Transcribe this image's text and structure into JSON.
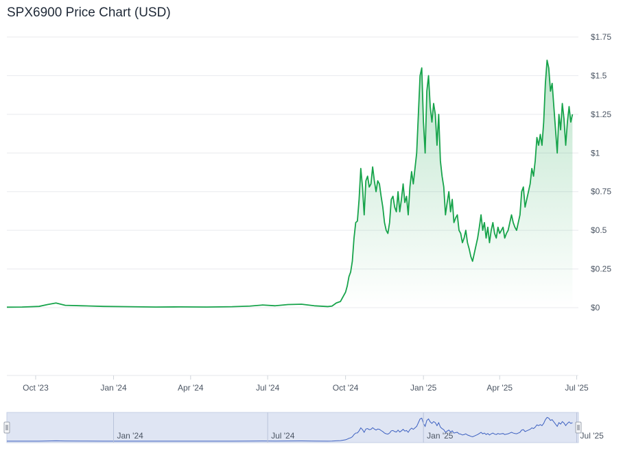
{
  "chart_data": {
    "type": "area",
    "title": "SPX6900 Price Chart (USD)",
    "y_ticks": [
      "$1.75",
      "$1.5",
      "$1.25",
      "$1",
      "$0.75",
      "$0.5",
      "$0.25",
      "$0"
    ],
    "y_tick_values": [
      1.75,
      1.5,
      1.25,
      1.0,
      0.75,
      0.5,
      0.25,
      0
    ],
    "x_ticks": [
      "Oct '23",
      "Jan '24",
      "Apr '24",
      "Jul '24",
      "Oct '24",
      "Jan '25",
      "Apr '25",
      "Jul '25"
    ],
    "x_tick_dates": [
      "2023-10-01",
      "2024-01-01",
      "2024-04-01",
      "2024-07-01",
      "2024-10-01",
      "2025-01-01",
      "2025-04-01",
      "2025-07-01"
    ],
    "navigator_ticks": [
      "Jan '24",
      "Jul '24",
      "Jan '25",
      "Jul '25"
    ],
    "navigator_tick_dates": [
      "2024-01-01",
      "2024-07-01",
      "2025-01-01",
      "2025-07-01"
    ],
    "ylim": [
      0,
      1.75
    ],
    "xlim": [
      "2023-08-28",
      "2025-07-03"
    ],
    "series": [
      {
        "color": "#16a34a",
        "points": [
          [
            "2023-08-28",
            0.003
          ],
          [
            "2023-09-15",
            0.004
          ],
          [
            "2023-10-05",
            0.008
          ],
          [
            "2023-10-15",
            0.02
          ],
          [
            "2023-10-25",
            0.03
          ],
          [
            "2023-11-05",
            0.015
          ],
          [
            "2023-11-25",
            0.012
          ],
          [
            "2023-12-20",
            0.008
          ],
          [
            "2024-01-20",
            0.006
          ],
          [
            "2024-02-20",
            0.004
          ],
          [
            "2024-03-20",
            0.005
          ],
          [
            "2024-04-20",
            0.004
          ],
          [
            "2024-05-20",
            0.006
          ],
          [
            "2024-06-10",
            0.01
          ],
          [
            "2024-06-25",
            0.017
          ],
          [
            "2024-07-10",
            0.012
          ],
          [
            "2024-07-25",
            0.02
          ],
          [
            "2024-08-10",
            0.022
          ],
          [
            "2024-08-25",
            0.012
          ],
          [
            "2024-09-10",
            0.007
          ],
          [
            "2024-09-15",
            0.01
          ],
          [
            "2024-09-20",
            0.03
          ],
          [
            "2024-09-25",
            0.04
          ],
          [
            "2024-09-28",
            0.07
          ],
          [
            "2024-10-01",
            0.1
          ],
          [
            "2024-10-03",
            0.14
          ],
          [
            "2024-10-05",
            0.2
          ],
          [
            "2024-10-07",
            0.23
          ],
          [
            "2024-10-09",
            0.3
          ],
          [
            "2024-10-11",
            0.45
          ],
          [
            "2024-10-13",
            0.55
          ],
          [
            "2024-10-15",
            0.56
          ],
          [
            "2024-10-17",
            0.7
          ],
          [
            "2024-10-19",
            0.9
          ],
          [
            "2024-10-21",
            0.78
          ],
          [
            "2024-10-23",
            0.6
          ],
          [
            "2024-10-25",
            0.82
          ],
          [
            "2024-10-27",
            0.85
          ],
          [
            "2024-10-29",
            0.78
          ],
          [
            "2024-10-31",
            0.8
          ],
          [
            "2024-11-02",
            0.91
          ],
          [
            "2024-11-04",
            0.82
          ],
          [
            "2024-11-06",
            0.75
          ],
          [
            "2024-11-08",
            0.82
          ],
          [
            "2024-11-10",
            0.8
          ],
          [
            "2024-11-12",
            0.72
          ],
          [
            "2024-11-14",
            0.65
          ],
          [
            "2024-11-16",
            0.55
          ],
          [
            "2024-11-18",
            0.5
          ],
          [
            "2024-11-20",
            0.48
          ],
          [
            "2024-11-22",
            0.55
          ],
          [
            "2024-11-24",
            0.7
          ],
          [
            "2024-11-26",
            0.72
          ],
          [
            "2024-11-28",
            0.65
          ],
          [
            "2024-11-30",
            0.62
          ],
          [
            "2024-12-02",
            0.75
          ],
          [
            "2024-12-04",
            0.62
          ],
          [
            "2024-12-06",
            0.7
          ],
          [
            "2024-12-08",
            0.8
          ],
          [
            "2024-12-10",
            0.68
          ],
          [
            "2024-12-12",
            0.72
          ],
          [
            "2024-12-14",
            0.6
          ],
          [
            "2024-12-16",
            0.78
          ],
          [
            "2024-12-18",
            0.88
          ],
          [
            "2024-12-20",
            0.8
          ],
          [
            "2024-12-22",
            0.9
          ],
          [
            "2024-12-24",
            1.0
          ],
          [
            "2024-12-26",
            1.25
          ],
          [
            "2024-12-28",
            1.5
          ],
          [
            "2024-12-30",
            1.55
          ],
          [
            "2025-01-01",
            1.2
          ],
          [
            "2025-01-03",
            1.0
          ],
          [
            "2025-01-05",
            1.4
          ],
          [
            "2025-01-07",
            1.5
          ],
          [
            "2025-01-09",
            1.3
          ],
          [
            "2025-01-11",
            1.2
          ],
          [
            "2025-01-13",
            1.32
          ],
          [
            "2025-01-15",
            1.25
          ],
          [
            "2025-01-17",
            1.05
          ],
          [
            "2025-01-19",
            1.25
          ],
          [
            "2025-01-21",
            0.95
          ],
          [
            "2025-01-23",
            0.85
          ],
          [
            "2025-01-25",
            0.78
          ],
          [
            "2025-01-27",
            0.6
          ],
          [
            "2025-01-29",
            0.68
          ],
          [
            "2025-01-31",
            0.75
          ],
          [
            "2025-02-02",
            0.62
          ],
          [
            "2025-02-04",
            0.7
          ],
          [
            "2025-02-06",
            0.55
          ],
          [
            "2025-02-08",
            0.58
          ],
          [
            "2025-02-10",
            0.6
          ],
          [
            "2025-02-12",
            0.5
          ],
          [
            "2025-02-14",
            0.48
          ],
          [
            "2025-02-16",
            0.42
          ],
          [
            "2025-02-18",
            0.45
          ],
          [
            "2025-02-20",
            0.5
          ],
          [
            "2025-02-22",
            0.42
          ],
          [
            "2025-02-24",
            0.38
          ],
          [
            "2025-02-26",
            0.33
          ],
          [
            "2025-02-28",
            0.3
          ],
          [
            "2025-03-02",
            0.35
          ],
          [
            "2025-03-04",
            0.4
          ],
          [
            "2025-03-06",
            0.45
          ],
          [
            "2025-03-08",
            0.52
          ],
          [
            "2025-03-10",
            0.6
          ],
          [
            "2025-03-12",
            0.5
          ],
          [
            "2025-03-14",
            0.55
          ],
          [
            "2025-03-16",
            0.45
          ],
          [
            "2025-03-18",
            0.52
          ],
          [
            "2025-03-20",
            0.42
          ],
          [
            "2025-03-22",
            0.5
          ],
          [
            "2025-03-24",
            0.55
          ],
          [
            "2025-03-26",
            0.48
          ],
          [
            "2025-03-28",
            0.45
          ],
          [
            "2025-03-30",
            0.52
          ],
          [
            "2025-04-01",
            0.48
          ],
          [
            "2025-04-03",
            0.5
          ],
          [
            "2025-04-05",
            0.52
          ],
          [
            "2025-04-07",
            0.45
          ],
          [
            "2025-04-09",
            0.48
          ],
          [
            "2025-04-11",
            0.5
          ],
          [
            "2025-04-13",
            0.55
          ],
          [
            "2025-04-15",
            0.6
          ],
          [
            "2025-04-17",
            0.55
          ],
          [
            "2025-04-19",
            0.52
          ],
          [
            "2025-04-21",
            0.5
          ],
          [
            "2025-04-23",
            0.55
          ],
          [
            "2025-04-25",
            0.6
          ],
          [
            "2025-04-27",
            0.75
          ],
          [
            "2025-04-29",
            0.78
          ],
          [
            "2025-05-01",
            0.65
          ],
          [
            "2025-05-03",
            0.7
          ],
          [
            "2025-05-05",
            0.75
          ],
          [
            "2025-05-07",
            0.8
          ],
          [
            "2025-05-09",
            0.9
          ],
          [
            "2025-05-11",
            0.85
          ],
          [
            "2025-05-13",
            0.95
          ],
          [
            "2025-05-15",
            1.1
          ],
          [
            "2025-05-17",
            1.05
          ],
          [
            "2025-05-19",
            1.12
          ],
          [
            "2025-05-21",
            1.05
          ],
          [
            "2025-05-23",
            1.2
          ],
          [
            "2025-05-25",
            1.45
          ],
          [
            "2025-05-27",
            1.6
          ],
          [
            "2025-05-29",
            1.55
          ],
          [
            "2025-05-31",
            1.4
          ],
          [
            "2025-06-02",
            1.45
          ],
          [
            "2025-06-04",
            1.3
          ],
          [
            "2025-06-06",
            1.15
          ],
          [
            "2025-06-08",
            1.0
          ],
          [
            "2025-06-10",
            1.25
          ],
          [
            "2025-06-12",
            1.15
          ],
          [
            "2025-06-14",
            1.32
          ],
          [
            "2025-06-16",
            1.22
          ],
          [
            "2025-06-18",
            1.05
          ],
          [
            "2025-06-20",
            1.2
          ],
          [
            "2025-06-22",
            1.3
          ],
          [
            "2025-06-24",
            1.2
          ],
          [
            "2025-06-26",
            1.25
          ]
        ]
      }
    ],
    "grid": true,
    "legend": "none",
    "navigator": true,
    "navigator_color": "#3b5fc0"
  }
}
